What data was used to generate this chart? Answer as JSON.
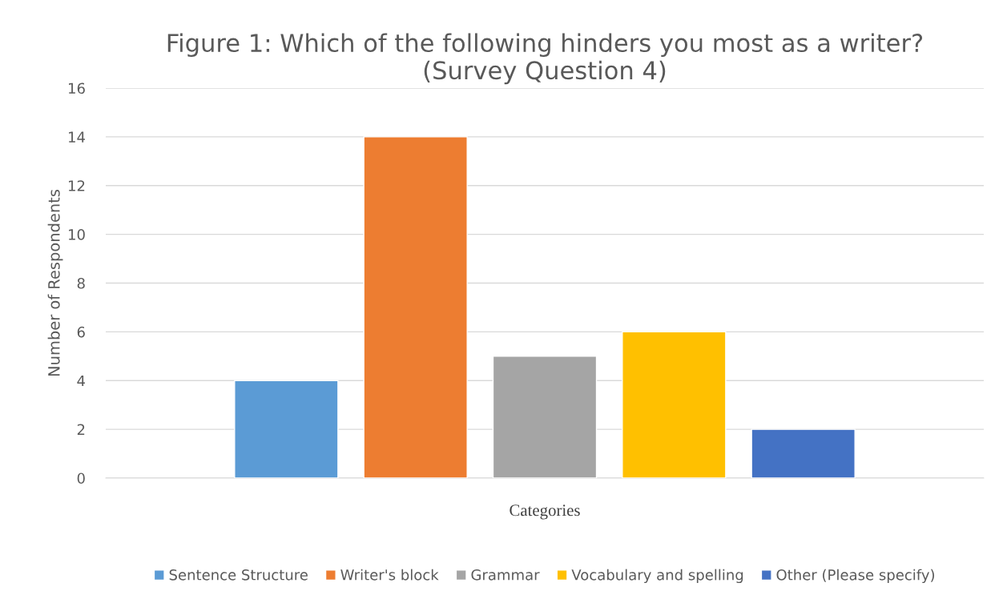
{
  "chart_data": {
    "type": "bar",
    "title": "Figure 1: Which of the following hinders you most as a writer?\n(Survey Question 4)",
    "xlabel": "Categories",
    "ylabel": "Number of Respondents",
    "categories": [
      null
    ],
    "series": [
      {
        "name": "Sentence Structure",
        "color": "#5b9bd5",
        "values": [
          4
        ]
      },
      {
        "name": "Writer's block",
        "color": "#ed7d31",
        "values": [
          14
        ]
      },
      {
        "name": "Grammar",
        "color": "#a5a5a5",
        "values": [
          5
        ]
      },
      {
        "name": "Vocabulary and spelling",
        "color": "#ffc000",
        "values": [
          6
        ]
      },
      {
        "name": "Other (Please specify)",
        "color": "#4472c4",
        "values": [
          2
        ]
      }
    ],
    "ylim": [
      0,
      16
    ],
    "yticks": [
      0,
      2,
      4,
      6,
      8,
      10,
      12,
      14,
      16
    ],
    "grid": "y",
    "legend": "bottom"
  }
}
